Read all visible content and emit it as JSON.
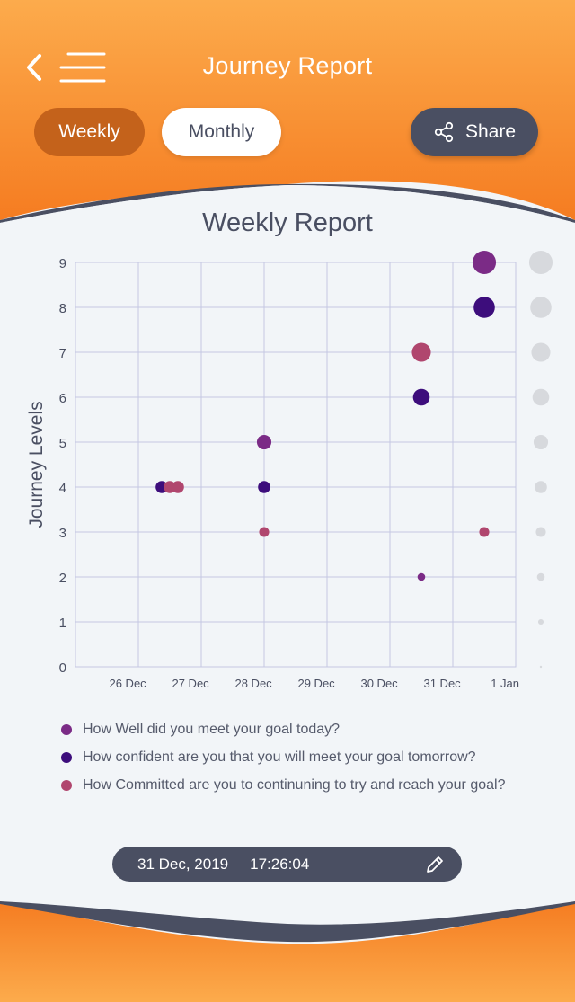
{
  "header": {
    "title": "Journey Report",
    "back_icon": "chevron-left-icon",
    "menu_icon": "hamburger-menu-icon",
    "tabs": [
      {
        "label": "Weekly",
        "active": true
      },
      {
        "label": "Monthly",
        "active": false
      }
    ],
    "share": {
      "label": "Share",
      "icon": "share-icon"
    }
  },
  "colors": {
    "orange_top": "#fcab4c",
    "orange_bottom": "#f57c21",
    "dark": "#4a4f62",
    "well": "#7b2b86",
    "confident": "#3d0d7c",
    "committed": "#b0466e",
    "grid": "#c5c8e2"
  },
  "chart_data": {
    "type": "scatter",
    "title": "Weekly Report",
    "ylabel": "Journey Levels",
    "xlabel": "",
    "ylim": [
      0,
      9
    ],
    "yticks": [
      "0",
      "1",
      "2",
      "3",
      "4",
      "5",
      "6",
      "7",
      "8",
      "9"
    ],
    "xlim": [
      "25 Dec",
      "1 Jan"
    ],
    "xticks": [
      "26 Dec",
      "27 Dec",
      "28 Dec",
      "29 Dec",
      "30 Dec",
      "31 Dec",
      "1 Jan"
    ],
    "grid": true,
    "size_scale_legend": "right",
    "series": [
      {
        "name": "How Well did you meet your goal today?",
        "color": "#7b2b86",
        "points": [
          {
            "x": "28 Dec",
            "y": 5,
            "size": 5
          },
          {
            "x": "30 Dec 12:00",
            "y": 2,
            "size": 2
          },
          {
            "x": "31 Dec 12:00",
            "y": 9,
            "size": 9
          }
        ]
      },
      {
        "name": "How confident are you that you will meet your goal tomorrow?",
        "color": "#3d0d7c",
        "points": [
          {
            "x": "26 Dec 12:00",
            "y": 4,
            "size": 4
          },
          {
            "x": "28 Dec",
            "y": 4,
            "size": 4
          },
          {
            "x": "30 Dec 12:00",
            "y": 6,
            "size": 6
          },
          {
            "x": "31 Dec 12:00",
            "y": 8,
            "size": 8
          }
        ]
      },
      {
        "name": "How Committed are you to continuning to try and reach your goal?",
        "color": "#b0466e",
        "points": [
          {
            "x": "26 Dec 12:00",
            "y": 4,
            "size": 4
          },
          {
            "x": "26 Dec 12:00",
            "y": 4,
            "size": 4
          },
          {
            "x": "28 Dec",
            "y": 3,
            "size": 3
          },
          {
            "x": "30 Dec 12:00",
            "y": 7,
            "size": 7
          },
          {
            "x": "31 Dec 12:00",
            "y": 3,
            "size": 3
          }
        ]
      }
    ]
  },
  "footer_bar": {
    "date": "31 Dec, 2019",
    "time": "17:26:04",
    "edit_icon": "pencil-icon"
  }
}
